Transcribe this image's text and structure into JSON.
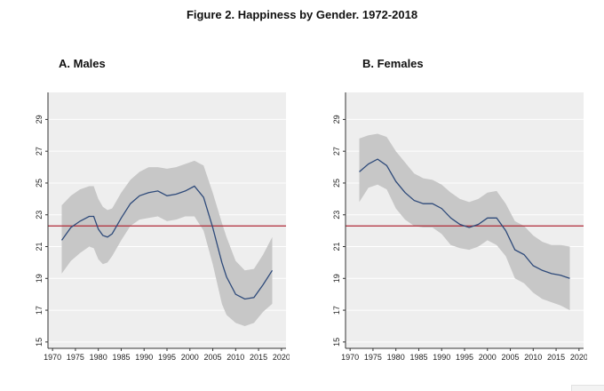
{
  "figure_title": "Figure 2. Happiness by Gender. 1972-2018",
  "colors": {
    "band": "#c7c7c7",
    "line": "#2e4a7a",
    "reference": "#b02a37",
    "plot_bg": "#eeeeee",
    "grid": "#ffffff"
  },
  "chart_data": [
    {
      "type": "line",
      "title": "A. Males",
      "xlabel": "",
      "ylabel": "",
      "xlim": [
        1969,
        2021
      ],
      "ylim": [
        14.6,
        30.7
      ],
      "xticks": [
        1970,
        1975,
        1980,
        1985,
        1990,
        1995,
        2000,
        2005,
        2010,
        2015,
        2020
      ],
      "yticks": [
        15,
        17,
        19,
        21,
        23,
        25,
        27,
        29
      ],
      "reference_line": 22.3,
      "grid": true,
      "series": [
        {
          "role": "estimate with confidence band",
          "x": [
            1972,
            1974,
            1976,
            1978,
            1979,
            1980,
            1981,
            1982,
            1983,
            1985,
            1987,
            1989,
            1991,
            1993,
            1995,
            1997,
            1999,
            2001,
            2003,
            2005,
            2007,
            2008,
            2010,
            2012,
            2014,
            2016,
            2018
          ],
          "y": [
            21.4,
            22.2,
            22.6,
            22.9,
            22.9,
            22.1,
            21.7,
            21.6,
            21.8,
            22.8,
            23.7,
            24.2,
            24.4,
            24.5,
            24.2,
            24.3,
            24.5,
            24.8,
            24.1,
            22.2,
            20.0,
            19.1,
            18.0,
            17.7,
            17.8,
            18.6,
            19.5
          ],
          "lower": [
            19.3,
            20.1,
            20.6,
            21.0,
            20.9,
            20.2,
            19.9,
            20.0,
            20.4,
            21.4,
            22.3,
            22.7,
            22.8,
            22.9,
            22.6,
            22.7,
            22.9,
            22.9,
            22.0,
            19.9,
            17.4,
            16.7,
            16.2,
            16.0,
            16.2,
            16.9,
            17.4
          ],
          "upper": [
            23.6,
            24.2,
            24.6,
            24.8,
            24.8,
            24.0,
            23.5,
            23.3,
            23.4,
            24.4,
            25.2,
            25.7,
            26.0,
            26.0,
            25.9,
            26.0,
            26.2,
            26.4,
            26.1,
            24.4,
            22.5,
            21.6,
            20.1,
            19.5,
            19.6,
            20.5,
            21.6
          ]
        }
      ]
    },
    {
      "type": "line",
      "title": "B. Females",
      "xlabel": "",
      "ylabel": "",
      "xlim": [
        1969,
        2021
      ],
      "ylim": [
        14.6,
        30.7
      ],
      "xticks": [
        1970,
        1975,
        1980,
        1985,
        1990,
        1995,
        2000,
        2005,
        2010,
        2015,
        2020
      ],
      "yticks": [
        15,
        17,
        19,
        21,
        23,
        25,
        27,
        29
      ],
      "reference_line": 22.3,
      "grid": true,
      "series": [
        {
          "role": "estimate with confidence band",
          "x": [
            1972,
            1974,
            1976,
            1978,
            1980,
            1982,
            1984,
            1986,
            1988,
            1990,
            1992,
            1994,
            1996,
            1998,
            2000,
            2002,
            2004,
            2006,
            2008,
            2010,
            2012,
            2014,
            2016,
            2018
          ],
          "y": [
            25.7,
            26.2,
            26.5,
            26.1,
            25.1,
            24.4,
            23.9,
            23.7,
            23.7,
            23.4,
            22.8,
            22.4,
            22.2,
            22.4,
            22.8,
            22.8,
            22.0,
            20.8,
            20.5,
            19.8,
            19.5,
            19.3,
            19.2,
            19.0
          ],
          "lower": [
            23.8,
            24.7,
            24.9,
            24.6,
            23.4,
            22.7,
            22.3,
            22.2,
            22.2,
            21.8,
            21.1,
            20.9,
            20.8,
            21.0,
            21.4,
            21.1,
            20.4,
            19.0,
            18.7,
            18.1,
            17.7,
            17.5,
            17.3,
            17.0
          ],
          "upper": [
            27.8,
            28.0,
            28.1,
            27.9,
            27.0,
            26.3,
            25.6,
            25.3,
            25.2,
            24.9,
            24.4,
            24.0,
            23.8,
            24.0,
            24.4,
            24.5,
            23.7,
            22.6,
            22.3,
            21.7,
            21.3,
            21.1,
            21.1,
            21.0
          ]
        }
      ]
    }
  ]
}
